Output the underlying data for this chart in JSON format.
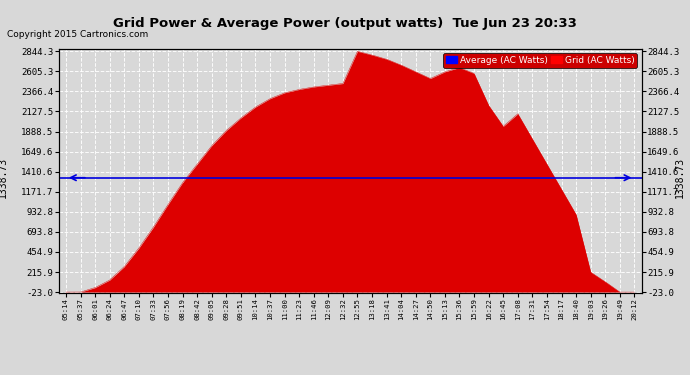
{
  "title": "Grid Power & Average Power (output watts)  Tue Jun 23 20:33",
  "copyright": "Copyright 2015 Cartronics.com",
  "average_value": 1338.73,
  "y_min": -23.0,
  "y_max": 2844.3,
  "y_ticks": [
    -23.0,
    215.9,
    454.9,
    693.8,
    932.8,
    1171.7,
    1410.6,
    1649.6,
    1888.5,
    2127.5,
    2366.4,
    2605.3,
    2844.3
  ],
  "background_color": "#d8d8d8",
  "fill_color": "#dd0000",
  "line_color": "#0000dd",
  "grid_color": "#ffffff",
  "x_labels": [
    "05:14",
    "05:37",
    "06:01",
    "06:24",
    "06:47",
    "07:10",
    "07:33",
    "07:56",
    "08:19",
    "08:42",
    "09:05",
    "09:28",
    "09:51",
    "10:14",
    "10:37",
    "11:00",
    "11:23",
    "11:46",
    "12:09",
    "12:32",
    "12:55",
    "13:18",
    "13:41",
    "14:04",
    "14:27",
    "14:50",
    "15:13",
    "15:36",
    "15:59",
    "16:22",
    "16:45",
    "17:08",
    "17:31",
    "17:54",
    "18:17",
    "18:40",
    "19:03",
    "19:26",
    "19:49",
    "20:12"
  ],
  "legend_avg_label": "Average (AC Watts)",
  "legend_grid_label": "Grid (AC Watts)",
  "curve_values": [
    -23,
    -23,
    30,
    120,
    280,
    500,
    750,
    1020,
    1280,
    1500,
    1720,
    1900,
    2050,
    2180,
    2280,
    2350,
    2390,
    2420,
    2440,
    2460,
    2844,
    2800,
    2750,
    2680,
    2600,
    2520,
    2600,
    2650,
    2580,
    2200,
    1950,
    2100,
    1800,
    1500,
    1200,
    900,
    215,
    100,
    -23,
    -23
  ]
}
